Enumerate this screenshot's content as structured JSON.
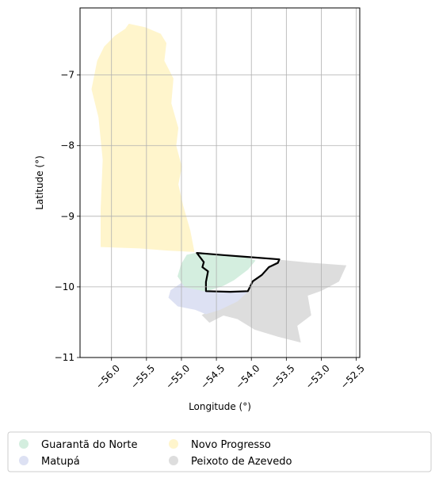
{
  "chart_data": {
    "type": "map",
    "xlabel": "Longitude (°)",
    "ylabel": "Latitude (°)",
    "xlim": [
      -56.45,
      -52.45
    ],
    "ylim": [
      -11.0,
      -6.05
    ],
    "grid": true,
    "xticks": [
      {
        "value": -56.0,
        "label": "−56.0"
      },
      {
        "value": -55.5,
        "label": "−55.5"
      },
      {
        "value": -55.0,
        "label": "−55.0"
      },
      {
        "value": -54.5,
        "label": "−54.5"
      },
      {
        "value": -54.0,
        "label": "−54.0"
      },
      {
        "value": -53.5,
        "label": "−53.5"
      },
      {
        "value": -53.0,
        "label": "−53.0"
      },
      {
        "value": -52.5,
        "label": "−52.5"
      }
    ],
    "yticks": [
      {
        "value": -7,
        "label": "−7"
      },
      {
        "value": -8,
        "label": "−8"
      },
      {
        "value": -9,
        "label": "−9"
      },
      {
        "value": -10,
        "label": "−10"
      },
      {
        "value": -11,
        "label": "−11"
      }
    ],
    "legend_placement": "bottom-center",
    "regions": [
      {
        "name": "Novo Progresso",
        "color": "#fff5cc",
        "polygon": [
          [
            -55.75,
            -6.28
          ],
          [
            -55.52,
            -6.33
          ],
          [
            -55.3,
            -6.42
          ],
          [
            -55.22,
            -6.55
          ],
          [
            -55.25,
            -6.8
          ],
          [
            -55.12,
            -7.05
          ],
          [
            -55.15,
            -7.4
          ],
          [
            -55.05,
            -7.75
          ],
          [
            -55.08,
            -8.0
          ],
          [
            -55.0,
            -8.3
          ],
          [
            -55.05,
            -8.55
          ],
          [
            -54.98,
            -8.85
          ],
          [
            -54.88,
            -9.2
          ],
          [
            -54.82,
            -9.5
          ],
          [
            -55.2,
            -9.48
          ],
          [
            -55.6,
            -9.45
          ],
          [
            -56.15,
            -9.43
          ],
          [
            -56.15,
            -8.9
          ],
          [
            -56.12,
            -8.2
          ],
          [
            -56.18,
            -7.6
          ],
          [
            -56.28,
            -7.2
          ],
          [
            -56.2,
            -6.8
          ],
          [
            -56.1,
            -6.6
          ],
          [
            -55.95,
            -6.45
          ],
          [
            -55.8,
            -6.35
          ]
        ]
      },
      {
        "name": "Peixoto de Azevedo",
        "color": "#dddddd",
        "polygon": [
          [
            -53.6,
            -9.62
          ],
          [
            -53.2,
            -9.66
          ],
          [
            -52.65,
            -9.7
          ],
          [
            -52.75,
            -9.92
          ],
          [
            -53.0,
            -10.05
          ],
          [
            -53.2,
            -10.12
          ],
          [
            -53.15,
            -10.4
          ],
          [
            -53.35,
            -10.55
          ],
          [
            -53.3,
            -10.78
          ],
          [
            -53.62,
            -10.7
          ],
          [
            -53.95,
            -10.6
          ],
          [
            -54.2,
            -10.45
          ],
          [
            -54.4,
            -10.4
          ],
          [
            -54.6,
            -10.5
          ],
          [
            -54.7,
            -10.4
          ],
          [
            -54.5,
            -10.3
          ],
          [
            -54.2,
            -10.1
          ],
          [
            -54.05,
            -10.06
          ],
          [
            -53.98,
            -9.92
          ],
          [
            -53.85,
            -9.83
          ],
          [
            -53.75,
            -9.72
          ]
        ]
      },
      {
        "name": "Matupá",
        "color": "#dde1f3",
        "polygon": [
          [
            -54.65,
            -10.06
          ],
          [
            -54.3,
            -10.06
          ],
          [
            -54.05,
            -10.06
          ],
          [
            -54.2,
            -10.2
          ],
          [
            -54.45,
            -10.32
          ],
          [
            -54.65,
            -10.38
          ],
          [
            -54.8,
            -10.32
          ],
          [
            -55.05,
            -10.27
          ],
          [
            -55.18,
            -10.15
          ],
          [
            -55.15,
            -10.05
          ],
          [
            -55.0,
            -9.95
          ],
          [
            -54.8,
            -9.98
          ]
        ]
      },
      {
        "name": "Guarantã do Norte",
        "color": "#d4eedf",
        "polygon": [
          [
            -54.78,
            -9.52
          ],
          [
            -54.45,
            -9.55
          ],
          [
            -54.1,
            -9.58
          ],
          [
            -53.95,
            -9.63
          ],
          [
            -54.05,
            -9.75
          ],
          [
            -54.25,
            -9.9
          ],
          [
            -54.4,
            -9.98
          ],
          [
            -54.65,
            -10.06
          ],
          [
            -54.95,
            -10.0
          ],
          [
            -55.05,
            -9.85
          ],
          [
            -55.0,
            -9.68
          ],
          [
            -54.92,
            -9.55
          ]
        ]
      }
    ],
    "outline": {
      "color": "#000000",
      "polygon": [
        [
          -54.78,
          -9.52
        ],
        [
          -54.4,
          -9.55
        ],
        [
          -54.0,
          -9.58
        ],
        [
          -53.6,
          -9.61
        ],
        [
          -53.62,
          -9.66
        ],
        [
          -53.75,
          -9.72
        ],
        [
          -53.85,
          -9.83
        ],
        [
          -53.98,
          -9.92
        ],
        [
          -54.05,
          -10.06
        ],
        [
          -54.3,
          -10.07
        ],
        [
          -54.65,
          -10.06
        ],
        [
          -54.65,
          -9.93
        ],
        [
          -54.62,
          -9.78
        ],
        [
          -54.7,
          -9.72
        ],
        [
          -54.68,
          -9.65
        ]
      ]
    },
    "legend": [
      {
        "label": "Guarantã do Norte",
        "color": "#d4eedf"
      },
      {
        "label": "Matupá",
        "color": "#dde1f3"
      },
      {
        "label": "Novo Progresso",
        "color": "#fff5cc"
      },
      {
        "label": "Peixoto de Azevedo",
        "color": "#dddddd"
      }
    ]
  }
}
